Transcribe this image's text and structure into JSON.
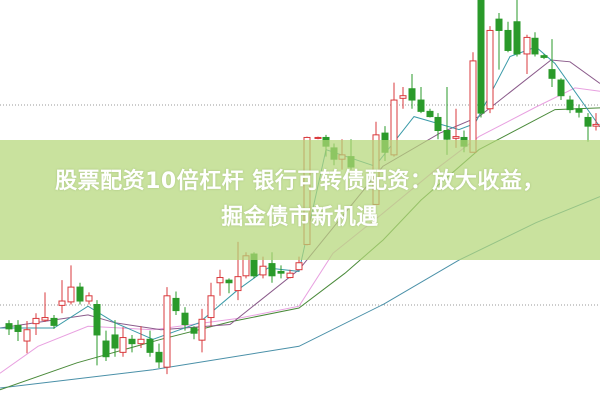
{
  "headline": {
    "line1": "股票配资10倍杠杆 银行可转债配资：放大收益，",
    "line2": "掘金债市新机遇"
  },
  "colors": {
    "up": "#d9393c",
    "down": "#2a9a2a",
    "banner": "#b4d778",
    "ma_short": "#3a9aa8",
    "ma_mid": "#8a5a8a",
    "ma_pink": "#e8a0e0",
    "ma_green": "#4a8a3a",
    "ma_long": "#4a90a8"
  }
}
